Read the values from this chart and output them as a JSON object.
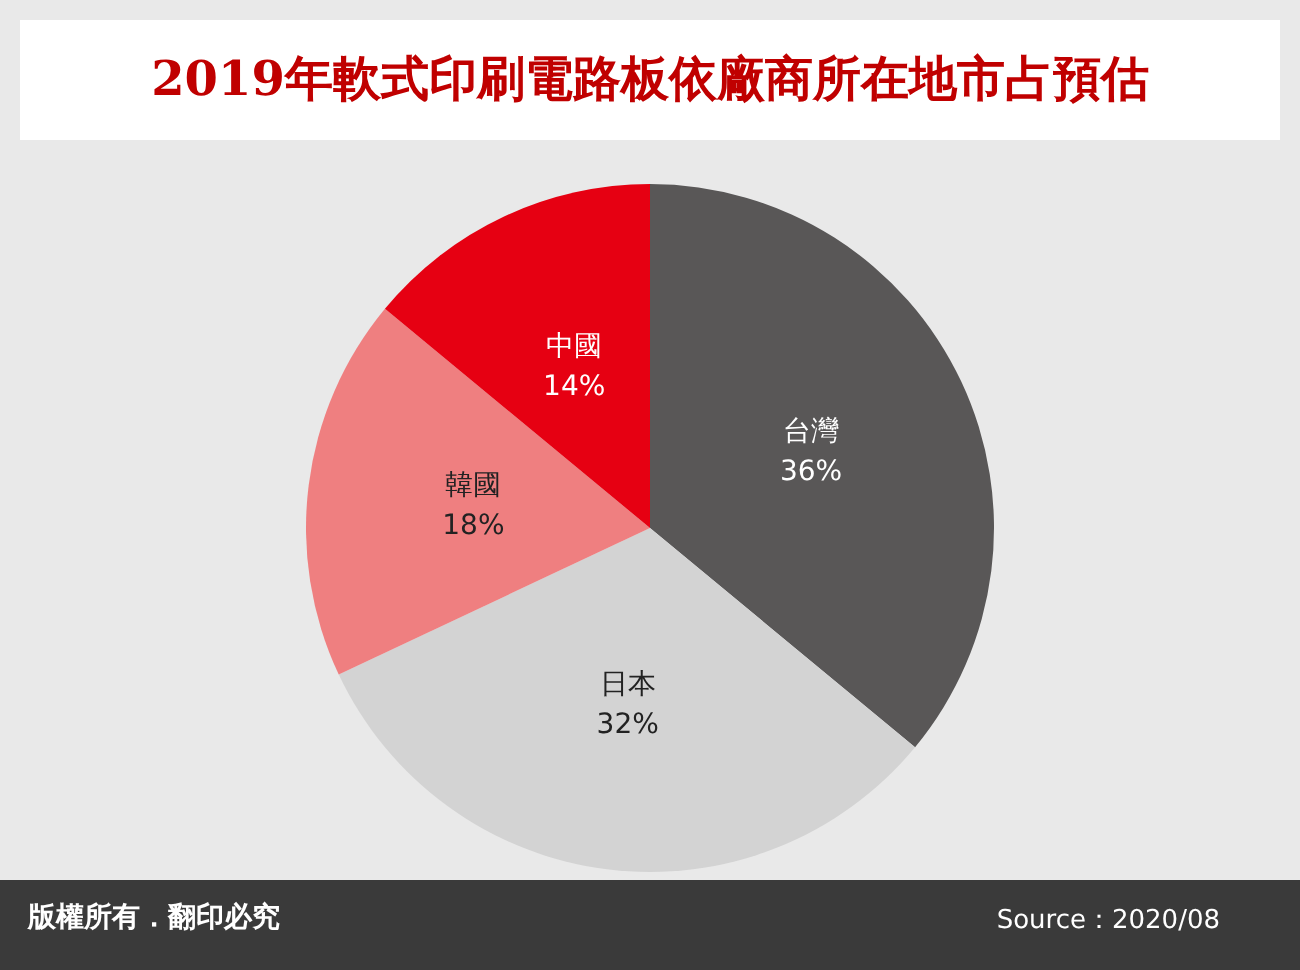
{
  "chart_data": {
    "type": "pie",
    "title": "2019年軟式印刷電路板依廠商所在地市占預估",
    "categories": [
      "台灣",
      "日本",
      "韓國",
      "中國"
    ],
    "values": [
      36,
      32,
      18,
      14
    ],
    "value_labels": [
      "36%",
      "32%",
      "18%",
      "14%"
    ],
    "colors": [
      "#595757",
      "#d3d3d3",
      "#ef7f80",
      "#e60012"
    ],
    "legend": false,
    "annotations": [
      "版權所有．翻印必究",
      "Source：2020/08"
    ]
  }
}
